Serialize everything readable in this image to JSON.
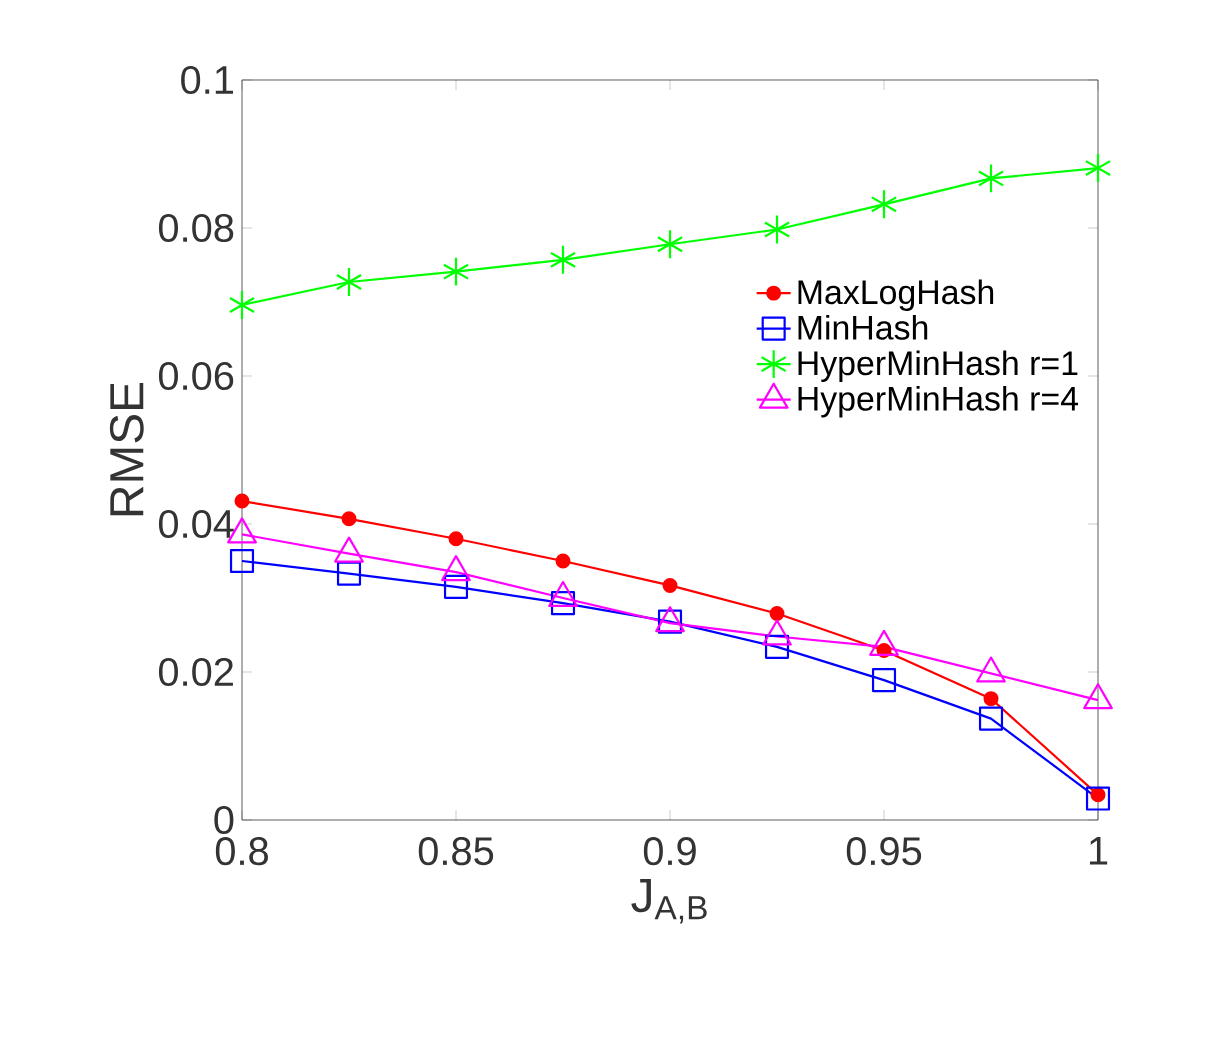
{
  "chart_data": {
    "type": "line",
    "xlabel": "J$_{A,B}$",
    "ylabel": "RMSE",
    "x": [
      0.8,
      0.825,
      0.85,
      0.875,
      0.9,
      0.925,
      0.95,
      0.975,
      1
    ],
    "xlim": [
      0.8,
      1
    ],
    "xticks": [
      0.8,
      0.85,
      0.9,
      0.95,
      1
    ],
    "ylim": [
      0,
      0.1
    ],
    "yticks": [
      0,
      0.02,
      0.04,
      0.06,
      0.08,
      0.1
    ],
    "grid": false,
    "legend": "right",
    "series": [
      {
        "name": "MaxLogHash",
        "color": "#ff0000",
        "marker": "circle",
        "values": [
          0.0431,
          0.0407,
          0.038,
          0.035,
          0.0317,
          0.0279,
          0.0229,
          0.0164,
          0.0034
        ]
      },
      {
        "name": "MinHash",
        "color": "#0000ff",
        "marker": "square",
        "values": [
          0.035,
          0.0333,
          0.0315,
          0.0293,
          0.0268,
          0.0234,
          0.0189,
          0.0137,
          0.0029
        ]
      },
      {
        "name": "HyperMinHash r=1",
        "color": "#00ff00",
        "marker": "cross",
        "values": [
          0.0696,
          0.0727,
          0.0741,
          0.0757,
          0.0778,
          0.0798,
          0.0832,
          0.0867,
          0.0881
        ]
      },
      {
        "name": "HyperMinHash r=4",
        "color": "#ff00ff",
        "marker": "triangle",
        "values": [
          0.0386,
          0.036,
          0.0335,
          0.03,
          0.0266,
          0.0248,
          0.0234,
          0.0198,
          0.0162
        ]
      }
    ]
  }
}
